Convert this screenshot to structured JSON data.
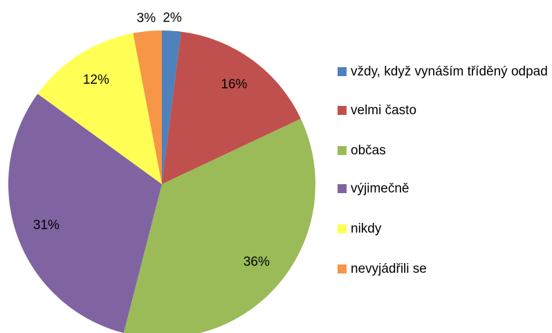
{
  "chart_data": {
    "type": "pie",
    "categories": [
      "vždy, když vynáším tříděný odpad",
      "velmi často",
      "občas",
      "výjimečně",
      "nikdy",
      "nevyjádřili se"
    ],
    "values": [
      2,
      16,
      36,
      31,
      12,
      3
    ],
    "value_labels": [
      "2%",
      "16%",
      "36%",
      "31%",
      "12%",
      "3%"
    ],
    "colors": [
      "#4f81bd",
      "#c0504d",
      "#9bbb59",
      "#8064a2",
      "#ffff55",
      "#f79646"
    ],
    "legend": "right"
  }
}
